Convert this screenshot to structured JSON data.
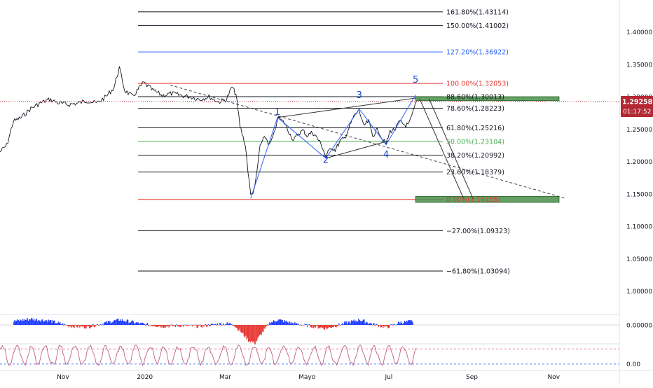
{
  "colors": {
    "price": "#131722",
    "fib_black": "#131722",
    "fib_red": "#e53935",
    "fib_blue": "#2962ff",
    "fib_green": "#4caf50",
    "wave_blue": "#2962ff",
    "zone_green": "#4a8f4a",
    "current_price_bg": "#b22833",
    "macd_red": "#e53935",
    "macd_blue": "#1e3cff",
    "stoch": "#c0607a",
    "stoch_red_level": "#e57373",
    "stoch_blue_level": "#2962ff"
  },
  "chart_data": {
    "type": "line",
    "axis": {
      "y_range": [
        0.965,
        1.445
      ],
      "y_ticks": [
        "1.40000",
        "1.35000",
        "1.30000",
        "1.25000",
        "1.20000",
        "1.15000",
        "1.10000",
        "1.05000",
        "1.00000"
      ],
      "x_labels": [
        "Nov",
        "2020",
        "Mar",
        "Mayo",
        "Jul",
        "Sep",
        "Nov"
      ],
      "date_range": [
        "2019-09-15",
        "2020-12-20"
      ],
      "x_label_dates": [
        "2019-11-01",
        "2020-01-01",
        "2020-03-01",
        "2020-05-01",
        "2020-07-01",
        "2020-09-01",
        "2020-11-01"
      ]
    },
    "current_price": {
      "label": "1.29258",
      "countdown": "01:17:52",
      "value": 1.29258
    },
    "fib_levels": [
      {
        "label": "161.80%(1.43114)",
        "value": 1.43114,
        "color": "black"
      },
      {
        "label": "150.00%(1.41002)",
        "value": 1.41002,
        "color": "black"
      },
      {
        "label": "127.20%(1.36922)",
        "value": 1.36922,
        "color": "blue"
      },
      {
        "label": "100.00%(1.32053)",
        "value": 1.32053,
        "color": "red"
      },
      {
        "label": "88.60%(1.30013)",
        "value": 1.30013,
        "color": "black"
      },
      {
        "label": "78.60%(1.28223)",
        "value": 1.28223,
        "color": "black"
      },
      {
        "label": "61.80%(1.25216)",
        "value": 1.25216,
        "color": "black"
      },
      {
        "label": "50.00%(1.23104)",
        "value": 1.23104,
        "color": "green"
      },
      {
        "label": "38.20%(1.20992)",
        "value": 1.20992,
        "color": "black"
      },
      {
        "label": "23.60%(1.18379)",
        "value": 1.18379,
        "color": "black"
      },
      {
        "label": "0.00%(1.14155)",
        "value": 1.14155,
        "color": "red"
      },
      {
        "label": "−27.00%(1.09323)",
        "value": 1.09323,
        "color": "black"
      },
      {
        "label": "−61.80%(1.03094)",
        "value": 1.03094,
        "color": "black"
      }
    ],
    "wave_labels": [
      {
        "label": "1",
        "date": "2020-04-09",
        "price": 1.272
      },
      {
        "label": "2",
        "date": "2020-05-15",
        "price": 1.198
      },
      {
        "label": "3",
        "date": "2020-06-09",
        "price": 1.298
      },
      {
        "label": "4",
        "date": "2020-06-29",
        "price": 1.206
      },
      {
        "label": "5",
        "date": "2020-07-21",
        "price": 1.322
      }
    ],
    "wave_path": [
      {
        "date": "2020-03-20",
        "price": 1.143
      },
      {
        "date": "2020-04-09",
        "price": 1.268
      },
      {
        "date": "2020-05-15",
        "price": 1.205
      },
      {
        "date": "2020-06-09",
        "price": 1.281
      },
      {
        "date": "2020-06-29",
        "price": 1.226
      },
      {
        "date": "2020-07-21",
        "price": 1.303
      }
    ],
    "channel_upper": [
      {
        "date": "2020-04-09",
        "price": 1.268
      },
      {
        "date": "2020-07-21",
        "price": 1.298
      }
    ],
    "channel_lower": [
      {
        "date": "2020-05-15",
        "price": 1.205
      },
      {
        "date": "2020-07-01",
        "price": 1.232
      }
    ],
    "trendline_dashed": [
      {
        "date": "2020-01-20",
        "price": 1.318
      },
      {
        "date": "2020-11-10",
        "price": 1.143
      }
    ],
    "projection_paths": [
      [
        {
          "date": "2020-07-24",
          "price": 1.297
        },
        {
          "date": "2020-08-26",
          "price": 1.142
        }
      ],
      [
        {
          "date": "2020-07-31",
          "price": 1.297
        },
        {
          "date": "2020-09-02",
          "price": 1.142
        }
      ]
    ],
    "zones": [
      {
        "name": "upper",
        "x0": "2020-07-21",
        "x1": "2020-11-05",
        "y0": 1.294,
        "y1": 1.3
      },
      {
        "name": "lower",
        "x0": "2020-07-21",
        "x1": "2020-11-05",
        "y0": 1.137,
        "y1": 1.146
      }
    ],
    "price_series": [
      {
        "date": "2019-09-15",
        "value": 1.215
      },
      {
        "date": "2019-09-20",
        "value": 1.225
      },
      {
        "date": "2019-09-25",
        "value": 1.262
      },
      {
        "date": "2019-10-01",
        "value": 1.268
      },
      {
        "date": "2019-10-08",
        "value": 1.282
      },
      {
        "date": "2019-10-15",
        "value": 1.29
      },
      {
        "date": "2019-10-22",
        "value": 1.296
      },
      {
        "date": "2019-10-29",
        "value": 1.29
      },
      {
        "date": "2019-11-05",
        "value": 1.288
      },
      {
        "date": "2019-11-12",
        "value": 1.29
      },
      {
        "date": "2019-11-19",
        "value": 1.294
      },
      {
        "date": "2019-11-26",
        "value": 1.29
      },
      {
        "date": "2019-12-03",
        "value": 1.3
      },
      {
        "date": "2019-12-09",
        "value": 1.314
      },
      {
        "date": "2019-12-13",
        "value": 1.345
      },
      {
        "date": "2019-12-17",
        "value": 1.31
      },
      {
        "date": "2019-12-23",
        "value": 1.3
      },
      {
        "date": "2019-12-31",
        "value": 1.322
      },
      {
        "date": "2020-01-07",
        "value": 1.31
      },
      {
        "date": "2020-01-14",
        "value": 1.302
      },
      {
        "date": "2020-01-21",
        "value": 1.305
      },
      {
        "date": "2020-01-28",
        "value": 1.302
      },
      {
        "date": "2020-02-04",
        "value": 1.3
      },
      {
        "date": "2020-02-11",
        "value": 1.296
      },
      {
        "date": "2020-02-18",
        "value": 1.3
      },
      {
        "date": "2020-02-25",
        "value": 1.292
      },
      {
        "date": "2020-03-02",
        "value": 1.296
      },
      {
        "date": "2020-03-06",
        "value": 1.315
      },
      {
        "date": "2020-03-09",
        "value": 1.304
      },
      {
        "date": "2020-03-12",
        "value": 1.255
      },
      {
        "date": "2020-03-16",
        "value": 1.225
      },
      {
        "date": "2020-03-18",
        "value": 1.185
      },
      {
        "date": "2020-03-20",
        "value": 1.148
      },
      {
        "date": "2020-03-23",
        "value": 1.158
      },
      {
        "date": "2020-03-25",
        "value": 1.19
      },
      {
        "date": "2020-03-27",
        "value": 1.225
      },
      {
        "date": "2020-03-31",
        "value": 1.238
      },
      {
        "date": "2020-04-03",
        "value": 1.225
      },
      {
        "date": "2020-04-07",
        "value": 1.245
      },
      {
        "date": "2020-04-09",
        "value": 1.268
      },
      {
        "date": "2020-04-14",
        "value": 1.26
      },
      {
        "date": "2020-04-17",
        "value": 1.248
      },
      {
        "date": "2020-04-21",
        "value": 1.232
      },
      {
        "date": "2020-04-24",
        "value": 1.242
      },
      {
        "date": "2020-04-28",
        "value": 1.248
      },
      {
        "date": "2020-05-01",
        "value": 1.24
      },
      {
        "date": "2020-05-05",
        "value": 1.245
      },
      {
        "date": "2020-05-08",
        "value": 1.238
      },
      {
        "date": "2020-05-12",
        "value": 1.225
      },
      {
        "date": "2020-05-15",
        "value": 1.207
      },
      {
        "date": "2020-05-19",
        "value": 1.222
      },
      {
        "date": "2020-05-22",
        "value": 1.218
      },
      {
        "date": "2020-05-26",
        "value": 1.232
      },
      {
        "date": "2020-05-29",
        "value": 1.236
      },
      {
        "date": "2020-06-02",
        "value": 1.255
      },
      {
        "date": "2020-06-05",
        "value": 1.27
      },
      {
        "date": "2020-06-09",
        "value": 1.279
      },
      {
        "date": "2020-06-12",
        "value": 1.255
      },
      {
        "date": "2020-06-16",
        "value": 1.262
      },
      {
        "date": "2020-06-19",
        "value": 1.24
      },
      {
        "date": "2020-06-23",
        "value": 1.25
      },
      {
        "date": "2020-06-26",
        "value": 1.235
      },
      {
        "date": "2020-06-29",
        "value": 1.227
      },
      {
        "date": "2020-07-02",
        "value": 1.247
      },
      {
        "date": "2020-07-06",
        "value": 1.25
      },
      {
        "date": "2020-07-09",
        "value": 1.262
      },
      {
        "date": "2020-07-13",
        "value": 1.256
      },
      {
        "date": "2020-07-16",
        "value": 1.257
      },
      {
        "date": "2020-07-19",
        "value": 1.275
      },
      {
        "date": "2020-07-21",
        "value": 1.289
      },
      {
        "date": "2020-07-22",
        "value": 1.293
      }
    ],
    "macd": {
      "zero_label": "0.00000",
      "bars": [
        {
          "date": "2019-09-25",
          "value": 0.55
        },
        {
          "date": "2019-10-08",
          "value": 0.85
        },
        {
          "date": "2019-10-22",
          "value": 0.6
        },
        {
          "date": "2019-11-05",
          "value": -0.15
        },
        {
          "date": "2019-11-19",
          "value": -0.3
        },
        {
          "date": "2019-12-03",
          "value": 0.35
        },
        {
          "date": "2019-12-13",
          "value": 0.75
        },
        {
          "date": "2019-12-31",
          "value": 0.1
        },
        {
          "date": "2020-01-14",
          "value": -0.2
        },
        {
          "date": "2020-01-28",
          "value": -0.1
        },
        {
          "date": "2020-02-11",
          "value": -0.2
        },
        {
          "date": "2020-02-25",
          "value": 0.15
        },
        {
          "date": "2020-03-06",
          "value": 0.2
        },
        {
          "date": "2020-03-12",
          "value": -0.9
        },
        {
          "date": "2020-03-18",
          "value": -2.2
        },
        {
          "date": "2020-03-23",
          "value": -2.6
        },
        {
          "date": "2020-03-27",
          "value": -1.4
        },
        {
          "date": "2020-04-03",
          "value": 0.3
        },
        {
          "date": "2020-04-09",
          "value": 0.75
        },
        {
          "date": "2020-04-21",
          "value": 0.2
        },
        {
          "date": "2020-05-05",
          "value": -0.2
        },
        {
          "date": "2020-05-15",
          "value": -0.5
        },
        {
          "date": "2020-05-29",
          "value": 0.25
        },
        {
          "date": "2020-06-09",
          "value": 0.75
        },
        {
          "date": "2020-06-19",
          "value": 0.1
        },
        {
          "date": "2020-06-29",
          "value": -0.35
        },
        {
          "date": "2020-07-09",
          "value": 0.35
        },
        {
          "date": "2020-07-19",
          "value": 0.55
        }
      ]
    },
    "stoch": {
      "zero_label": "0.00",
      "levels": [
        {
          "value": 80,
          "color": "red"
        },
        {
          "value": 20,
          "color": "blue"
        }
      ],
      "amplitude": [
        15,
        95
      ]
    }
  }
}
